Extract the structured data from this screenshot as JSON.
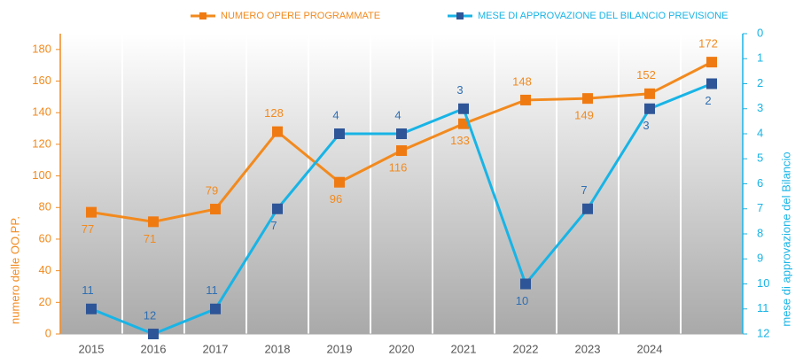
{
  "chart_data": {
    "type": "line",
    "categories": [
      "2015",
      "2016",
      "2017",
      "2018",
      "2019",
      "2020",
      "2021",
      "2022",
      "2023",
      "2024",
      null
    ],
    "series": [
      {
        "name": "NUMERO OPERE PROGRAMMATE",
        "color": "#f28a1e",
        "marker_color": "#f07a12",
        "values": [
          77,
          71,
          79,
          128,
          96,
          116,
          133,
          148,
          149,
          152,
          172
        ]
      },
      {
        "name": "MESE DI APPROVAZIONE DEL BILANCIO PREVISIONE",
        "color": "#18b4e6",
        "marker_color": "#2e5597",
        "label_color": "#2f6fb3",
        "axis": "y2",
        "values": [
          11,
          12,
          11,
          7,
          4,
          4,
          3,
          10,
          7,
          3,
          2
        ]
      }
    ],
    "ylabel": "numero delle OO.PP.",
    "y2label": "mese di approvazione del Bilancio",
    "ylim": [
      0,
      190
    ],
    "yticks": [
      0,
      20,
      40,
      60,
      80,
      100,
      120,
      140,
      160,
      180
    ],
    "y2lim": [
      0,
      12
    ],
    "y2ticks": [
      0,
      1,
      2,
      3,
      4,
      5,
      6,
      7,
      8,
      9,
      10,
      11,
      12
    ],
    "y2_inverted": true,
    "y_color": "#f28a1e",
    "y2_color": "#18b4e6"
  }
}
